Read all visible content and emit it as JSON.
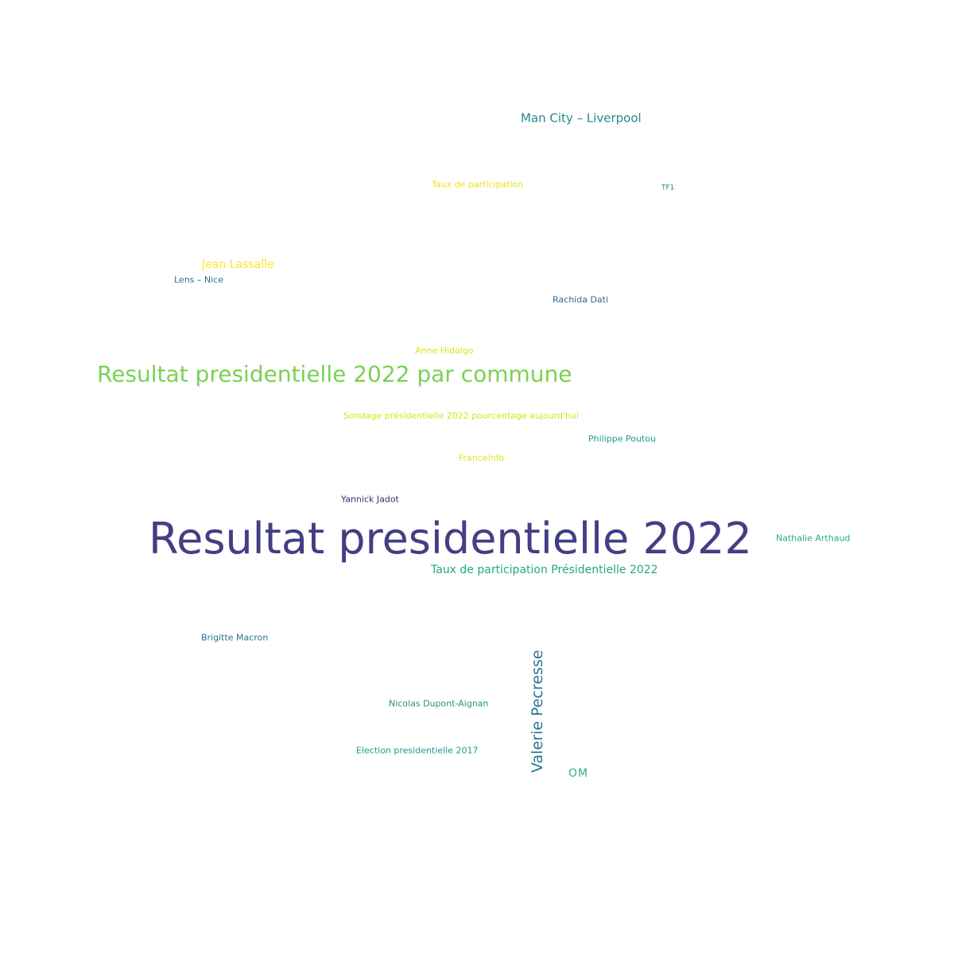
{
  "words": [
    {
      "text": "Resultat presidentielle 2022",
      "color": "#433e85"
    },
    {
      "text": "Resultat presidentielle 2022 par commune",
      "color": "#7ad151"
    },
    {
      "text": "Valerie Pecresse",
      "color": "#2a788e"
    },
    {
      "text": "Man City – Liverpool",
      "color": "#23888e"
    },
    {
      "text": "Jean Lassalle",
      "color": "#fde725"
    },
    {
      "text": "Taux de participation Présidentielle 2022",
      "color": "#22a884"
    },
    {
      "text": "OM",
      "color": "#2ab07f"
    },
    {
      "text": "Taux de participation",
      "color": "#e5e419"
    },
    {
      "text": "TF1",
      "color": "#25858e"
    },
    {
      "text": "Lens – Nice",
      "color": "#2d708e"
    },
    {
      "text": "Rachida Dati",
      "color": "#31688e"
    },
    {
      "text": "Anne Hidalgo",
      "color": "#dde318"
    },
    {
      "text": "Sondage présidentielle 2022 pourcentage aujourd'hui",
      "color": "#d8e219"
    },
    {
      "text": "Philippe Poutou",
      "color": "#1f9a8a"
    },
    {
      "text": "Franceinfo",
      "color": "#e2e418"
    },
    {
      "text": "Yannick Jadot",
      "color": "#482677"
    },
    {
      "text": "Nathalie Arthaud",
      "color": "#27ad81"
    },
    {
      "text": "Brigitte Macron",
      "color": "#2c728e"
    },
    {
      "text": "Nicolas Dupont-Aignan",
      "color": "#21918c"
    },
    {
      "text": "Election presidentielle 2017",
      "color": "#1f988b"
    }
  ]
}
